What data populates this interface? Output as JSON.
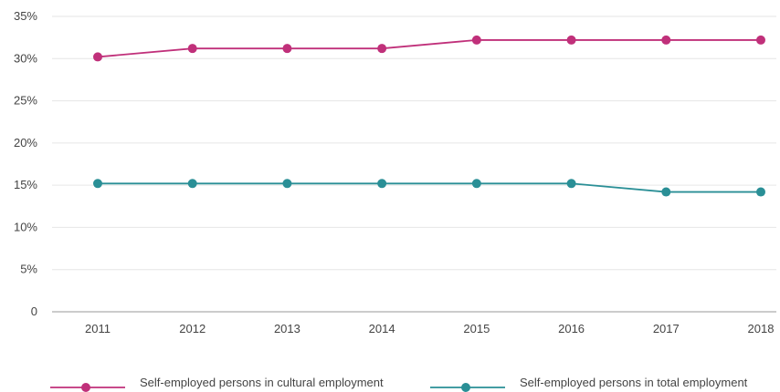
{
  "chart_data": {
    "type": "line",
    "categories": [
      "2011",
      "2012",
      "2013",
      "2014",
      "2015",
      "2016",
      "2017",
      "2018"
    ],
    "y_ticks": [
      "35%",
      "30%",
      "25%",
      "20%",
      "15%",
      "10%",
      "5%",
      "0"
    ],
    "ylim": [
      0,
      35
    ],
    "grid": true,
    "legend_placement": "bottom",
    "series": [
      {
        "name": "Self-employed persons in cultural employment",
        "color": "#c0307a",
        "values": [
          30.2,
          31.2,
          31.2,
          31.2,
          32.2,
          32.2,
          32.2,
          32.2
        ]
      },
      {
        "name": "Self-employed persons in total employment",
        "color": "#2a8f96",
        "values": [
          15.2,
          15.2,
          15.2,
          15.2,
          15.2,
          15.2,
          14.2,
          14.2
        ]
      }
    ]
  }
}
